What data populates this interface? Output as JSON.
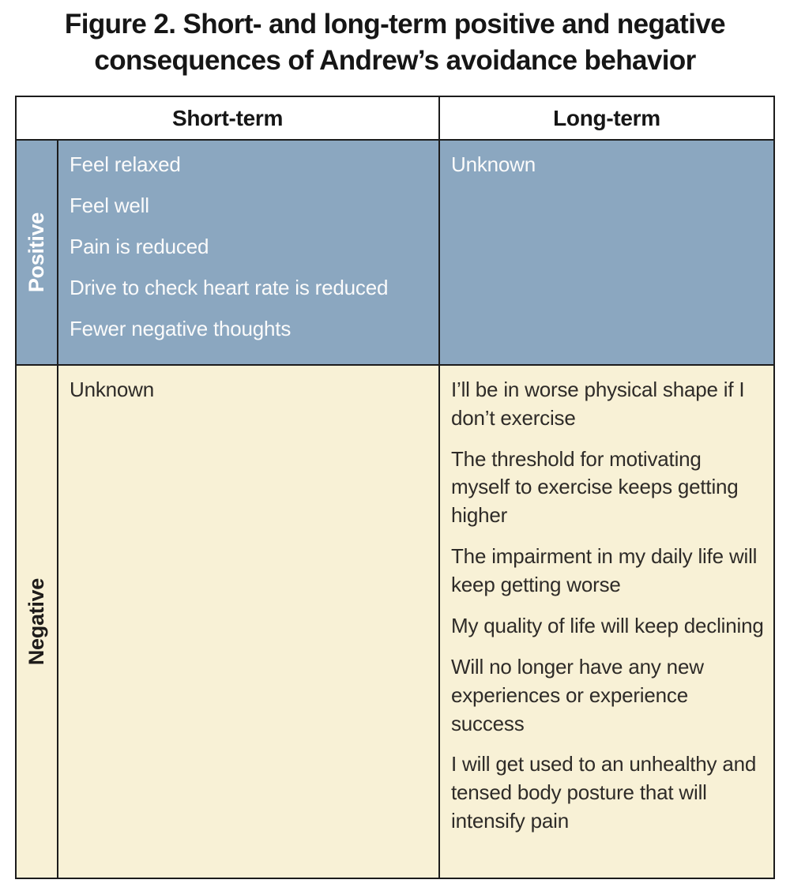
{
  "figure": {
    "title_lines": [
      "Figure 2. Short- and long-term positive and negative",
      "consequences of Andrew’s avoidance behavior"
    ]
  },
  "table": {
    "headers": {
      "short_term": "Short-term",
      "long_term": "Long-term"
    },
    "row_labels": {
      "positive": "Positive",
      "negative": "Negative"
    },
    "positive": {
      "short_term_items": [
        "Feel relaxed",
        "Feel well",
        "Pain is reduced",
        "Drive to check heart rate is reduced",
        "Fewer negative thoughts"
      ],
      "long_term_items": [
        "Unknown"
      ]
    },
    "negative": {
      "short_term_items": [
        "Unknown"
      ],
      "long_term_items": [
        "I’ll be in worse physical shape if I don’t exercise",
        "The threshold for motivating myself to exercise keeps getting higher",
        "The impairment in my daily life will keep getting worse",
        "My quality of life will keep declining",
        "Will no longer have any new experiences or experience success",
        "I will get used to an unhealthy and tensed body posture that will intensify pain"
      ]
    },
    "colors": {
      "positive_row_bg": "#8BA7C0",
      "negative_row_bg": "#F8F1D6",
      "positive_row_text": "#FFFFFF",
      "negative_row_text": "#2E2B28",
      "border": "#1C1C1C"
    }
  }
}
